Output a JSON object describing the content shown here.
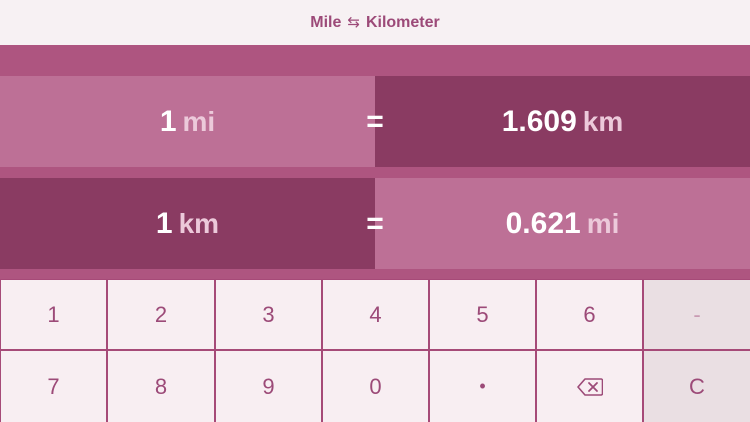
{
  "header": {
    "title_left": "Mile",
    "swap_symbol": "⇆",
    "title_right": "Kilometer"
  },
  "conversions": [
    {
      "input_value": "1",
      "input_unit": "mi",
      "equals": "=",
      "result_value": "1.609",
      "result_unit": "km"
    },
    {
      "input_value": "1",
      "input_unit": "km",
      "equals": "=",
      "result_value": "0.621",
      "result_unit": "mi"
    }
  ],
  "keypad": {
    "row1": [
      "1",
      "2",
      "3",
      "4",
      "5",
      "6",
      "-"
    ],
    "row2": [
      "7",
      "8",
      "9",
      "0",
      "•",
      "backspace-icon",
      "C"
    ]
  },
  "colors": {
    "header_bg": "#f7f1f3",
    "accent": "#ae5580",
    "light_panel": "#bd7096",
    "dark_panel": "#8a3b62",
    "key_bg": "#f8eef2",
    "key_text": "#9c4a78"
  }
}
